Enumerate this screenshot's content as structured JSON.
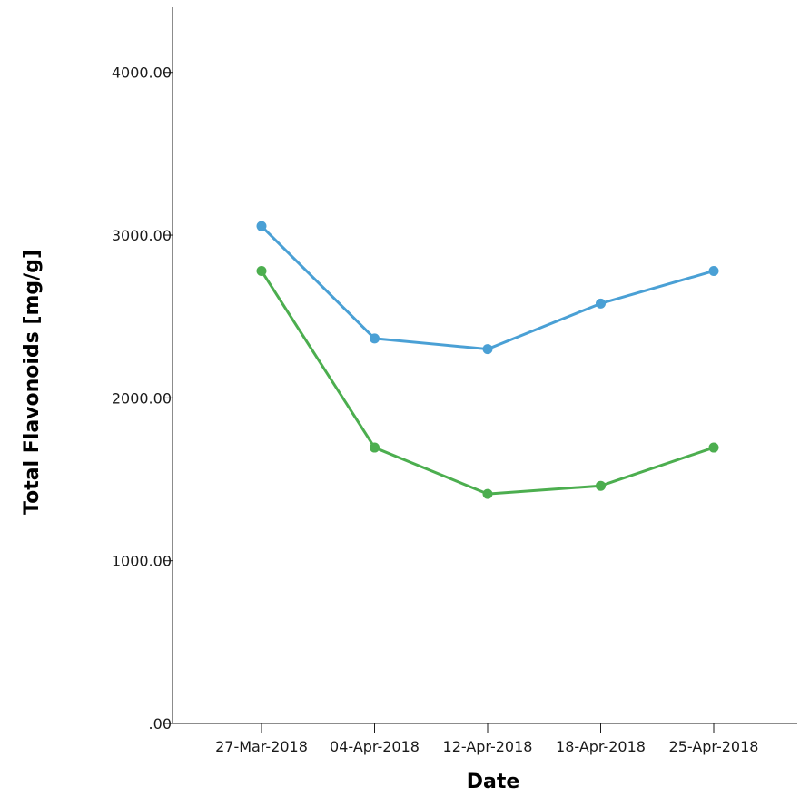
{
  "chart_data": {
    "type": "line",
    "title": "",
    "xlabel": "Date",
    "ylabel": "Total Flavonoids [mg/g]",
    "categories": [
      "27-Mar-2018",
      "04-Apr-2018",
      "12-Apr-2018",
      "18-Apr-2018",
      "25-Apr-2018"
    ],
    "y_ticks": [
      0,
      1000,
      2000,
      3000,
      4000
    ],
    "y_tick_labels": [
      ".00",
      "1000.00",
      "2000.00",
      "3000.00",
      "4000.00"
    ],
    "ylim": [
      0,
      4400
    ],
    "grid": false,
    "legend": "none",
    "series": [
      {
        "color": "#4aa0d5",
        "values": [
          3055,
          2365,
          2300,
          2580,
          2780
        ]
      },
      {
        "color": "#4cae4f",
        "values": [
          2780,
          1695,
          1410,
          1460,
          1695
        ]
      }
    ]
  }
}
